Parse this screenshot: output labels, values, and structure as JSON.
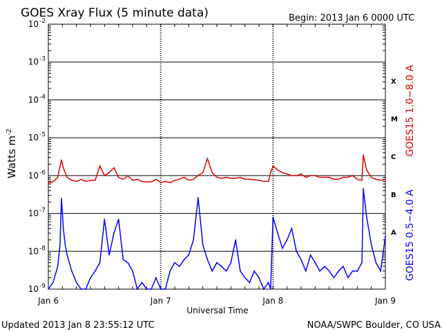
{
  "chart_data": {
    "type": "line",
    "title": "GOES Xray Flux (5 minute data)",
    "begin_label": "Begin:  2013 Jan 6 0000 UTC",
    "ylabel": "Watts m",
    "ylabel_sup": "-2",
    "xlabel": "Universal Time",
    "y_scale": "log",
    "ylim": [
      1e-09,
      0.01
    ],
    "y_ticks": [
      {
        "exp": "-9",
        "value": 1e-09
      },
      {
        "exp": "-8",
        "value": 1e-08
      },
      {
        "exp": "-7",
        "value": 1e-07
      },
      {
        "exp": "-6",
        "value": 1e-06
      },
      {
        "exp": "-5",
        "value": 1e-05
      },
      {
        "exp": "-4",
        "value": 0.0001
      },
      {
        "exp": "-3",
        "value": 0.001
      },
      {
        "exp": "-2",
        "value": 0.01
      }
    ],
    "x_ticks": [
      "Jan 6",
      "Jan 7",
      "Jan 8",
      "Jan 9"
    ],
    "xlim_hours": [
      0,
      72
    ],
    "flare_classes": [
      {
        "label": "X",
        "value": 0.00032
      },
      {
        "label": "M",
        "value": 3.2e-05
      },
      {
        "label": "C",
        "value": 3.2e-06
      },
      {
        "label": "B",
        "value": 3.2e-07
      },
      {
        "label": "A",
        "value": 3.2e-08
      }
    ],
    "series": [
      {
        "name": "GOES15 1.0−8.0 A",
        "color": "#e00000",
        "x_hours": [
          0,
          1,
          2,
          2.8,
          3.2,
          4,
          5,
          6,
          7,
          8,
          9,
          10,
          11,
          12,
          13,
          14,
          15,
          16,
          17,
          18,
          19,
          20,
          21,
          22,
          23,
          24,
          25,
          26,
          27,
          28,
          29,
          30,
          31,
          32,
          33,
          34,
          35,
          36,
          37,
          38,
          39,
          40,
          41,
          42,
          43,
          44,
          45,
          46,
          47,
          47.5,
          48,
          49,
          50,
          51,
          52,
          53,
          54,
          55,
          56,
          57,
          58,
          59,
          60,
          61,
          62,
          63,
          64,
          65,
          66,
          67,
          67.3,
          68,
          69,
          70,
          71,
          72
        ],
        "values": [
          6.5e-07,
          6.8e-07,
          9e-07,
          2.6e-06,
          1.6e-06,
          9e-07,
          7.5e-07,
          7e-07,
          8e-07,
          7e-07,
          7.5e-07,
          7.5e-07,
          1.8e-06,
          1e-06,
          1.2e-06,
          1.6e-06,
          9e-07,
          8e-07,
          1e-06,
          7.5e-07,
          8e-07,
          7e-07,
          6.8e-07,
          6.8e-07,
          8e-07,
          6.5e-07,
          7e-07,
          6.5e-07,
          7.5e-07,
          8e-07,
          9e-07,
          7.5e-07,
          8e-07,
          1e-06,
          1.2e-06,
          2.8e-06,
          1.2e-06,
          9e-07,
          8.5e-07,
          9e-07,
          8.5e-07,
          8.5e-07,
          9e-07,
          8e-07,
          8e-07,
          7.8e-07,
          7.5e-07,
          7e-07,
          7e-07,
          1.2e-06,
          1.8e-06,
          1.4e-06,
          1.2e-06,
          1.1e-06,
          1e-06,
          1e-06,
          1.1e-06,
          9e-07,
          1e-06,
          1e-06,
          9e-07,
          9e-07,
          9e-07,
          8e-07,
          8e-07,
          9e-07,
          9e-07,
          1e-06,
          8e-07,
          7.5e-07,
          3.5e-06,
          1.4e-06,
          9e-07,
          8e-07,
          7.5e-07,
          8e-07
        ]
      },
      {
        "name": "GOES15 0.5−4.0 A",
        "color": "#0000ff",
        "x_hours": [
          0,
          1,
          2,
          2.5,
          2.8,
          3.2,
          3.6,
          4,
          5,
          6,
          7,
          8,
          9,
          10,
          11,
          12,
          13,
          14,
          15,
          16,
          17,
          18,
          19,
          20,
          21,
          22,
          23,
          24,
          25,
          26,
          27,
          28,
          29,
          30,
          31,
          32,
          33,
          34,
          35,
          36,
          37,
          38,
          39,
          40,
          41,
          42,
          43,
          44,
          45,
          46,
          47,
          47.5,
          48,
          49,
          50,
          51,
          52,
          53,
          54,
          55,
          56,
          57,
          58,
          59,
          60,
          61,
          62,
          63,
          64,
          65,
          66,
          67,
          67.3,
          68,
          69,
          70,
          71,
          72
        ],
        "values": [
          1e-09,
          1.5e-09,
          4e-09,
          1.5e-08,
          2.5e-07,
          4e-08,
          1.5e-08,
          8e-09,
          3e-09,
          1.5e-09,
          1e-09,
          1e-09,
          2e-09,
          3e-09,
          5e-09,
          7e-08,
          8e-09,
          3e-08,
          7e-08,
          6e-09,
          5e-09,
          3e-09,
          1e-09,
          1.5e-09,
          1e-09,
          1e-09,
          2e-09,
          1e-09,
          1e-09,
          3e-09,
          5e-09,
          4e-09,
          6e-09,
          8e-09,
          2e-08,
          2.6e-07,
          1.5e-08,
          6e-09,
          3e-09,
          5e-09,
          4e-09,
          3e-09,
          5e-09,
          2e-08,
          3e-09,
          2e-09,
          1.5e-09,
          3e-09,
          2e-09,
          1e-09,
          1.5e-09,
          1e-09,
          8e-08,
          3e-08,
          1.2e-08,
          2e-08,
          4e-08,
          1e-08,
          6e-09,
          3e-09,
          8e-09,
          5e-09,
          3e-09,
          4e-09,
          3e-09,
          2e-09,
          3e-09,
          4e-09,
          2e-09,
          3e-09,
          3e-09,
          5e-09,
          4.5e-07,
          8e-08,
          1.5e-08,
          5e-09,
          3e-09,
          2.5e-08
        ]
      }
    ],
    "footer_left": "Updated 2013 Jan  8 23:55:12 UTC",
    "footer_right": "NOAA/SWPC Boulder, CO USA"
  }
}
